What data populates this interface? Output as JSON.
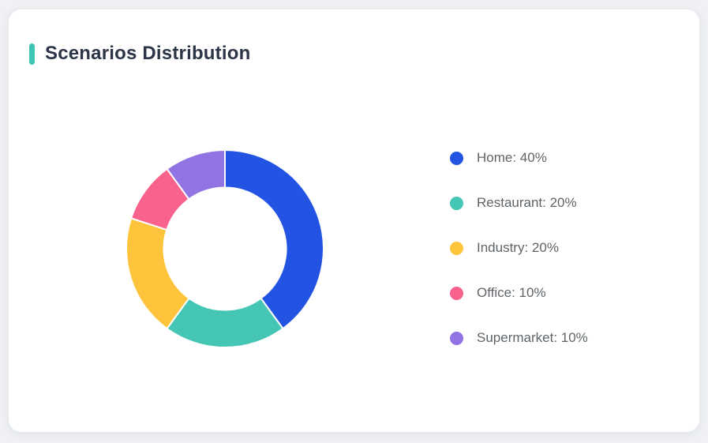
{
  "page": {
    "background_color": "#eff1f4"
  },
  "card": {
    "title": "Scenarios Distribution",
    "accent_color": "#3ec6b4",
    "background_color": "#ffffff",
    "title_color": "#2b3547"
  },
  "chart_data": {
    "type": "pie",
    "subtype": "donut",
    "title": "Scenarios Distribution",
    "categories": [
      "Home",
      "Restaurant",
      "Industry",
      "Office",
      "Supermarket"
    ],
    "values": [
      40,
      20,
      20,
      10,
      10
    ],
    "unit": "%",
    "colors": [
      "#2253e3",
      "#45c6b5",
      "#fdc43c",
      "#f9628c",
      "#9173e3"
    ],
    "legend_labels": [
      "Home: 40%",
      "Restaurant: 20%",
      "Industry: 20%",
      "Office: 10%",
      "Supermarket: 10%"
    ],
    "legend_position": "right",
    "start_angle_deg": 0,
    "direction": "clockwise",
    "inner_radius_ratio": 0.62,
    "segment_border_color": "#ffffff",
    "legend_text_color": "#5f6468"
  }
}
